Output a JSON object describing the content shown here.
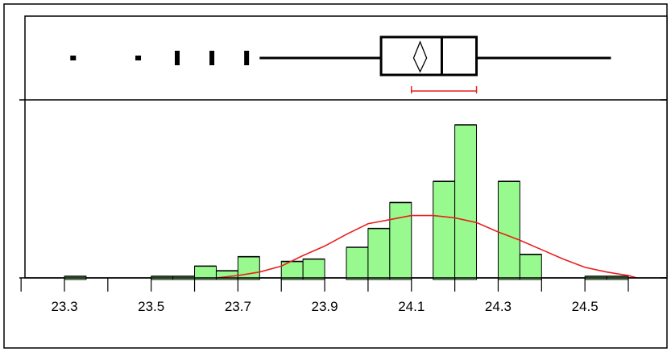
{
  "chart_data": {
    "type": "histogram",
    "title": "",
    "xlabel": "",
    "ylabel": "",
    "xlim": [
      23.2,
      24.65
    ],
    "x_ticks": [
      23.3,
      23.5,
      23.7,
      23.9,
      24.1,
      24.3,
      24.5
    ],
    "x_tick_labels": [
      "23.3",
      "23.5",
      "23.7",
      "23.9",
      "24.1",
      "24.3",
      "24.5"
    ],
    "bin_width": 0.05,
    "bins": [
      {
        "start": 23.3,
        "end": 23.35,
        "count": 0
      },
      {
        "start": 23.5,
        "end": 23.55,
        "count": 0
      },
      {
        "start": 23.55,
        "end": 23.6,
        "count": 0
      },
      {
        "start": 23.6,
        "end": 23.65,
        "count": 1
      },
      {
        "start": 23.65,
        "end": 23.7,
        "count": 0.6
      },
      {
        "start": 23.7,
        "end": 23.75,
        "count": 1.8
      },
      {
        "start": 23.8,
        "end": 23.85,
        "count": 1.4
      },
      {
        "start": 23.85,
        "end": 23.9,
        "count": 1.6
      },
      {
        "start": 23.95,
        "end": 24.0,
        "count": 2.6
      },
      {
        "start": 24.0,
        "end": 24.05,
        "count": 4.2
      },
      {
        "start": 24.05,
        "end": 24.1,
        "count": 6.4
      },
      {
        "start": 24.15,
        "end": 24.2,
        "count": 8.2
      },
      {
        "start": 24.2,
        "end": 24.25,
        "count": 13
      },
      {
        "start": 24.3,
        "end": 24.35,
        "count": 8.2
      },
      {
        "start": 24.35,
        "end": 24.4,
        "count": 2.0
      },
      {
        "start": 24.5,
        "end": 24.55,
        "count": 0
      },
      {
        "start": 24.55,
        "end": 24.6,
        "count": 0
      }
    ],
    "y_max": 13.4,
    "density_curve": {
      "color": "#e8201e",
      "points": [
        [
          23.65,
          0.0
        ],
        [
          23.7,
          0.2
        ],
        [
          23.75,
          0.5
        ],
        [
          23.8,
          1.0
        ],
        [
          23.85,
          1.9
        ],
        [
          23.9,
          2.7
        ],
        [
          23.95,
          3.7
        ],
        [
          24.0,
          4.6
        ],
        [
          24.05,
          4.95
        ],
        [
          24.1,
          5.3
        ],
        [
          24.15,
          5.3
        ],
        [
          24.2,
          5.1
        ],
        [
          24.25,
          4.7
        ],
        [
          24.3,
          3.9
        ],
        [
          24.35,
          3.2
        ],
        [
          24.4,
          2.4
        ],
        [
          24.45,
          1.6
        ],
        [
          24.5,
          0.9
        ],
        [
          24.55,
          0.5
        ],
        [
          24.6,
          0.2
        ],
        [
          24.62,
          0.0
        ]
      ]
    },
    "box_plot": {
      "whisker_low": 23.75,
      "q1": 24.03,
      "median": 24.17,
      "q3": 24.25,
      "whisker_high": 24.56,
      "mean": 24.12,
      "mean_diamond_halfwidth": 0.015,
      "outliers": [
        23.32,
        23.47,
        23.56,
        23.56,
        23.64,
        23.64,
        23.72,
        23.72
      ],
      "shortest_half": [
        24.1,
        24.25
      ]
    },
    "colors": {
      "bar_fill": "#98f98f",
      "bar_stroke": "#000000",
      "axis": "#000000",
      "shortest_half": "#e8201e"
    }
  }
}
